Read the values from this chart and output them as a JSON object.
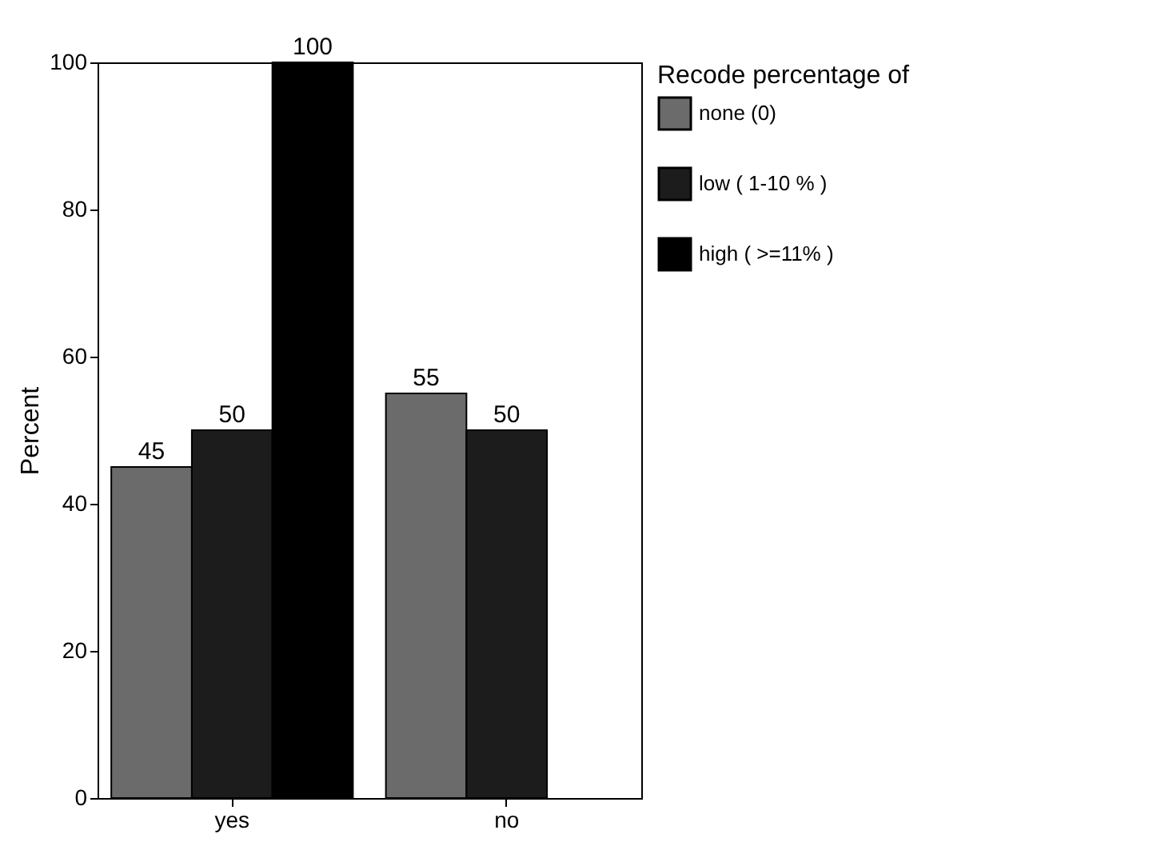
{
  "chart_data": {
    "type": "bar",
    "ylabel": "Percent",
    "legend_title": "Recode percentage of",
    "categories": [
      "yes",
      "no"
    ],
    "series": [
      {
        "name": "none (0)",
        "color": "#6b6b6b",
        "values": [
          45,
          55
        ]
      },
      {
        "name": "low ( 1-10 % )",
        "color": "#1c1c1c",
        "values": [
          50,
          50
        ]
      },
      {
        "name": "high ( >=11% )",
        "color": "#000000",
        "values": [
          100,
          null
        ]
      }
    ],
    "ylim": [
      0,
      100
    ],
    "yticks": [
      0,
      20,
      40,
      60,
      80,
      100
    ],
    "grid": false,
    "legend": "right",
    "data_labels": true
  }
}
